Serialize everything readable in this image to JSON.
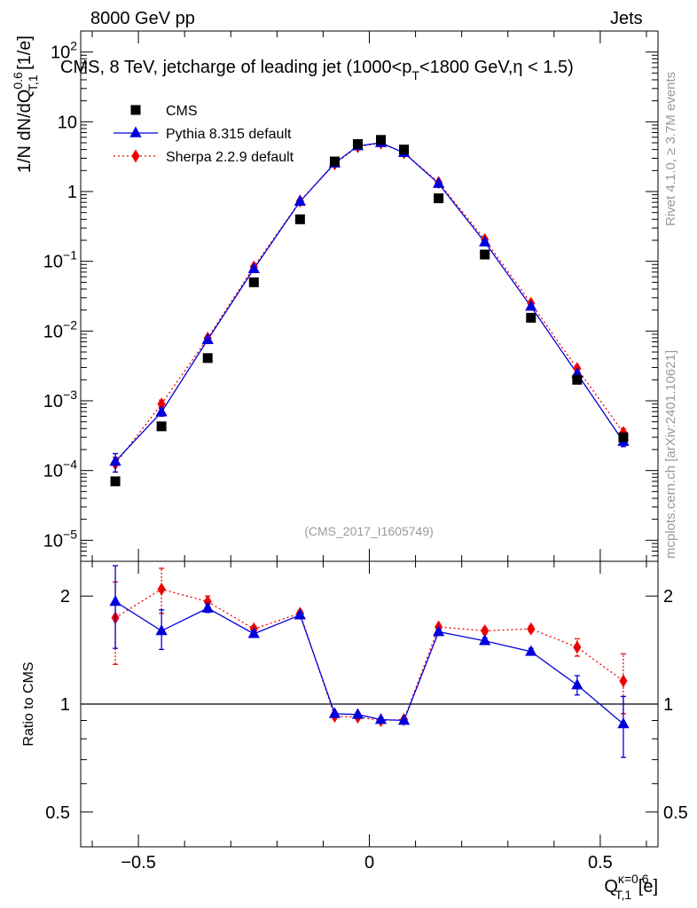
{
  "header": {
    "energy_label": "8000 GeV pp",
    "process_label": "Jets"
  },
  "side_labels": {
    "rivet": "Rivet 4.1.0, ≥ 3.7M events",
    "mcplots": "mcplots.cern.ch [arXiv:2401.10621]"
  },
  "colors": {
    "cms": "#000000",
    "pythia": "#0000dd",
    "sherpa": "#ee0000"
  },
  "chart_data": [
    {
      "type": "scatter",
      "role": "main",
      "title": "CMS, 8 TeV, jetcharge of leading jet (1000<p_T<1800 GeV, η < 1.5)",
      "title_parts": {
        "pre": "CMS, 8 TeV, jetcharge of leading jet (1000<p",
        "sub": "T",
        "post": "<1800 GeV,η < 1.5)"
      },
      "watermark": "(CMS_2017_I1605749)",
      "ylabel": "1/N dN/dQ^0.6_T,1 [1/e]",
      "ylabel_parts": {
        "pre": "1/N dN/dQ",
        "sup": "0.6",
        "sub": "T,1",
        "post": " [1/e]"
      },
      "yscale": "log",
      "ylim": [
        5e-06,
        200
      ],
      "yticks": [
        {
          "v": 1e-05,
          "base": "10",
          "exp": "−5"
        },
        {
          "v": 0.0001,
          "base": "10",
          "exp": "−4"
        },
        {
          "v": 0.001,
          "base": "10",
          "exp": "−3"
        },
        {
          "v": 0.01,
          "base": "10",
          "exp": "−2"
        },
        {
          "v": 0.1,
          "base": "10",
          "exp": "−1"
        },
        {
          "v": 1,
          "base": "1",
          "exp": ""
        },
        {
          "v": 10,
          "base": "10",
          "exp": ""
        },
        {
          "v": 100,
          "base": "10",
          "exp": "2"
        }
      ],
      "xlim": [
        -0.625,
        0.625
      ],
      "legend": {
        "placement": "top-left",
        "entries": [
          "CMS",
          "Pythia 8.315 default",
          "Sherpa 2.2.9 default"
        ]
      },
      "series": [
        {
          "name": "CMS",
          "style": "square",
          "x": [
            -0.55,
            -0.45,
            -0.35,
            -0.25,
            -0.15,
            -0.075,
            -0.025,
            0.025,
            0.075,
            0.15,
            0.25,
            0.35,
            0.45,
            0.55
          ],
          "y": [
            7e-05,
            0.00043,
            0.0041,
            0.05,
            0.4,
            2.7,
            4.8,
            5.5,
            4.0,
            0.8,
            0.125,
            0.0155,
            0.002,
            0.0003
          ]
        },
        {
          "name": "Pythia 8.315 default",
          "style": "triangle-solid",
          "x": [
            -0.55,
            -0.45,
            -0.35,
            -0.25,
            -0.15,
            -0.075,
            -0.025,
            0.025,
            0.075,
            0.15,
            0.25,
            0.35,
            0.45,
            0.55
          ],
          "y": [
            0.000135,
            0.00069,
            0.0075,
            0.078,
            0.72,
            2.55,
            4.5,
            5.0,
            3.6,
            1.3,
            0.188,
            0.0225,
            0.00245,
            0.00026
          ],
          "yerr": [
            4e-05,
            9e-05,
            0.0003,
            0.002,
            0.01,
            0.02,
            0.02,
            0.02,
            0.02,
            0.01,
            0.002,
            0.0003,
            0.00012,
            4e-05
          ]
        },
        {
          "name": "Sherpa 2.2.9 default",
          "style": "diamond-dotted",
          "x": [
            -0.55,
            -0.45,
            -0.35,
            -0.25,
            -0.15,
            -0.075,
            -0.025,
            0.025,
            0.075,
            0.15,
            0.25,
            0.35,
            0.45,
            0.55
          ],
          "y": [
            0.000125,
            0.0009,
            0.0079,
            0.083,
            0.73,
            2.5,
            4.4,
            4.95,
            3.6,
            1.35,
            0.205,
            0.025,
            0.0029,
            0.00035
          ],
          "yerr": [
            3e-05,
            0.00012,
            0.0003,
            0.002,
            0.01,
            0.02,
            0.02,
            0.02,
            0.02,
            0.01,
            0.002,
            0.0003,
            0.0002,
            5e-05
          ]
        }
      ]
    },
    {
      "type": "scatter",
      "role": "ratio",
      "ylabel": "Ratio to CMS",
      "yscale": "log",
      "ylim": [
        0.4,
        2.5
      ],
      "yticks": [
        {
          "v": 0.5,
          "label": "0.5"
        },
        {
          "v": 1,
          "label": "1"
        },
        {
          "v": 2,
          "label": "2"
        }
      ],
      "reference_line": 1,
      "xlim": [
        -0.625,
        0.625
      ],
      "xticks": [
        {
          "v": -0.5,
          "label": "−0.5"
        },
        {
          "v": 0,
          "label": "0"
        },
        {
          "v": 0.5,
          "label": "0.5"
        }
      ],
      "xlabel": "Q^κ=0.6_T,1 [e]",
      "xlabel_parts": {
        "pre": "Q",
        "sup": "κ=0.6",
        "sub": "T,1",
        "post": " [e]"
      },
      "series": [
        {
          "name": "Pythia 8.315 default",
          "style": "triangle-solid",
          "x": [
            -0.55,
            -0.45,
            -0.35,
            -0.25,
            -0.15,
            -0.075,
            -0.025,
            0.025,
            0.075,
            0.15,
            0.25,
            0.35,
            0.45,
            0.55
          ],
          "y": [
            1.93,
            1.6,
            1.85,
            1.57,
            1.77,
            0.94,
            0.935,
            0.905,
            0.9,
            1.59,
            1.5,
            1.4,
            1.13,
            0.88
          ],
          "err_lo": [
            0.5,
            0.18,
            0.05,
            0.03,
            0.03,
            0.01,
            0.01,
            0.01,
            0.01,
            0.02,
            0.03,
            0.03,
            0.07,
            0.17
          ],
          "err_hi": [
            0.5,
            0.23,
            0.05,
            0.03,
            0.03,
            0.01,
            0.01,
            0.01,
            0.01,
            0.02,
            0.03,
            0.03,
            0.07,
            0.17
          ]
        },
        {
          "name": "Sherpa 2.2.9 default",
          "style": "diamond-dotted",
          "x": [
            -0.55,
            -0.45,
            -0.35,
            -0.25,
            -0.15,
            -0.075,
            -0.025,
            0.025,
            0.075,
            0.15,
            0.25,
            0.35,
            0.45,
            0.55
          ],
          "y": [
            1.74,
            2.09,
            1.93,
            1.62,
            1.79,
            0.925,
            0.92,
            0.9,
            0.905,
            1.64,
            1.6,
            1.62,
            1.44,
            1.16
          ],
          "err_lo": [
            0.45,
            0.3,
            0.07,
            0.03,
            0.03,
            0.01,
            0.01,
            0.01,
            0.01,
            0.02,
            0.03,
            0.03,
            0.08,
            0.22
          ],
          "err_hi": [
            0.45,
            0.3,
            0.07,
            0.03,
            0.03,
            0.01,
            0.01,
            0.01,
            0.01,
            0.02,
            0.03,
            0.03,
            0.08,
            0.22
          ]
        }
      ]
    }
  ]
}
